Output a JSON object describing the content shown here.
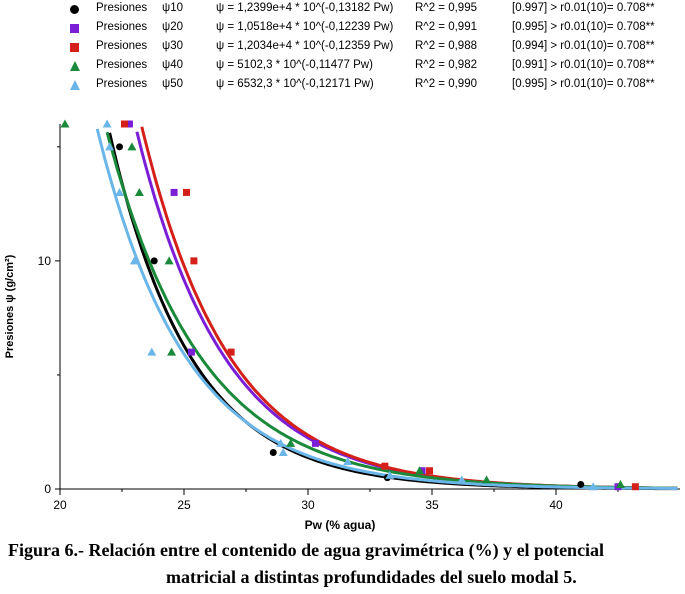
{
  "legend": [
    {
      "label": "Presiones",
      "psi": "ψ10",
      "equation": "ψ = 1,2399e+4 * 10^(-0,13182 Pw)",
      "r2": "R^2 = 0,995",
      "significance": "[0.997] > r0.01(10)= 0.708**",
      "color": "#000000",
      "marker": "circle"
    },
    {
      "label": "Presiones",
      "psi": "ψ20",
      "equation": "ψ = 1,0518e+4 * 10^(-0,12239 Pw)",
      "r2": "R^2 = 0,991",
      "significance": "[0.995] > r0.01(10)= 0.708**",
      "color": "#7a1fd6",
      "marker": "square"
    },
    {
      "label": "Presiones",
      "psi": "ψ30",
      "equation": "ψ = 1,2034e+4 * 10^(-0,12359 Pw)",
      "r2": "R^2 = 0,988",
      "significance": "[0.994] > r0.01(10)= 0.708**",
      "color": "#d42018",
      "marker": "square"
    },
    {
      "label": "Presiones",
      "psi": "ψ40",
      "equation": "ψ = 5102,3 * 10^(-0,11477 Pw)",
      "r2": "R^2 = 0,982",
      "significance": "[0.991] > r0.01(10)= 0.708**",
      "color": "#1a8a3a",
      "marker": "triangle"
    },
    {
      "label": "Presiones",
      "psi": "ψ50",
      "equation": "ψ = 6532,3 * 10^(-0,12171 Pw)",
      "r2": "R^2 = 0,990",
      "significance": "[0.995] > r0.01(10)= 0.708**",
      "color": "#6bb6e8",
      "marker": "triangle"
    }
  ],
  "chart_data": {
    "type": "scatter",
    "xlabel": "Pw (% agua)",
    "ylabel": "Presiones ψ (g/cm²)",
    "xlim": [
      20,
      45
    ],
    "ylim": [
      0,
      16
    ],
    "x_ticks": [
      20,
      25,
      30,
      35,
      40
    ],
    "y_ticks": [
      0,
      10
    ],
    "series": [
      {
        "name": "Presiones ψ10",
        "color": "#000000",
        "marker": "circle",
        "fit": {
          "a": 12399,
          "b": 0.13182
        },
        "points": [
          [
            22.4,
            15
          ],
          [
            23.8,
            10
          ],
          [
            28.6,
            1.6
          ],
          [
            33.2,
            0.5
          ],
          [
            41,
            0.2
          ]
        ]
      },
      {
        "name": "Presiones ψ20",
        "color": "#7a1fd6",
        "marker": "square",
        "fit": {
          "a": 10518,
          "b": 0.12239
        },
        "points": [
          [
            22.8,
            16
          ],
          [
            24.6,
            13
          ],
          [
            25.3,
            6
          ],
          [
            30.3,
            2
          ],
          [
            34.6,
            0.8
          ],
          [
            42.5,
            0.1
          ]
        ]
      },
      {
        "name": "Presiones ψ30",
        "color": "#d42018",
        "marker": "square",
        "fit": {
          "a": 12034,
          "b": 0.12359
        },
        "points": [
          [
            22.6,
            16
          ],
          [
            25.1,
            13
          ],
          [
            25.4,
            10
          ],
          [
            26.9,
            6
          ],
          [
            33.1,
            1
          ],
          [
            34.9,
            0.8
          ],
          [
            43.2,
            0.1
          ]
        ]
      },
      {
        "name": "Presiones ψ40",
        "color": "#1a8a3a",
        "marker": "triangle",
        "fit": {
          "a": 5102.3,
          "b": 0.11477
        },
        "points": [
          [
            20.2,
            16
          ],
          [
            22.9,
            15
          ],
          [
            23.2,
            13
          ],
          [
            24.4,
            10
          ],
          [
            24.5,
            6
          ],
          [
            29.3,
            2
          ],
          [
            34.5,
            0.8
          ],
          [
            37.2,
            0.4
          ],
          [
            42.6,
            0.2
          ]
        ]
      },
      {
        "name": "Presiones ψ50",
        "color": "#6bb6e8",
        "marker": "triangle",
        "fit": {
          "a": 6532.3,
          "b": 0.12171
        },
        "points": [
          [
            21.9,
            16
          ],
          [
            22,
            15
          ],
          [
            22.4,
            13
          ],
          [
            23,
            10
          ],
          [
            23.7,
            6
          ],
          [
            28.9,
            2
          ],
          [
            29,
            1.6
          ],
          [
            31.6,
            1.2
          ],
          [
            33.3,
            0.6
          ],
          [
            36.2,
            0.4
          ],
          [
            41.5,
            0.1
          ]
        ]
      }
    ]
  },
  "caption": {
    "line1": "Figura  6.- Relación entre el contenido de agua gravimétrica (%) y el potencial",
    "line2": "matricial  a distintas profundidades del suelo modal 5."
  }
}
